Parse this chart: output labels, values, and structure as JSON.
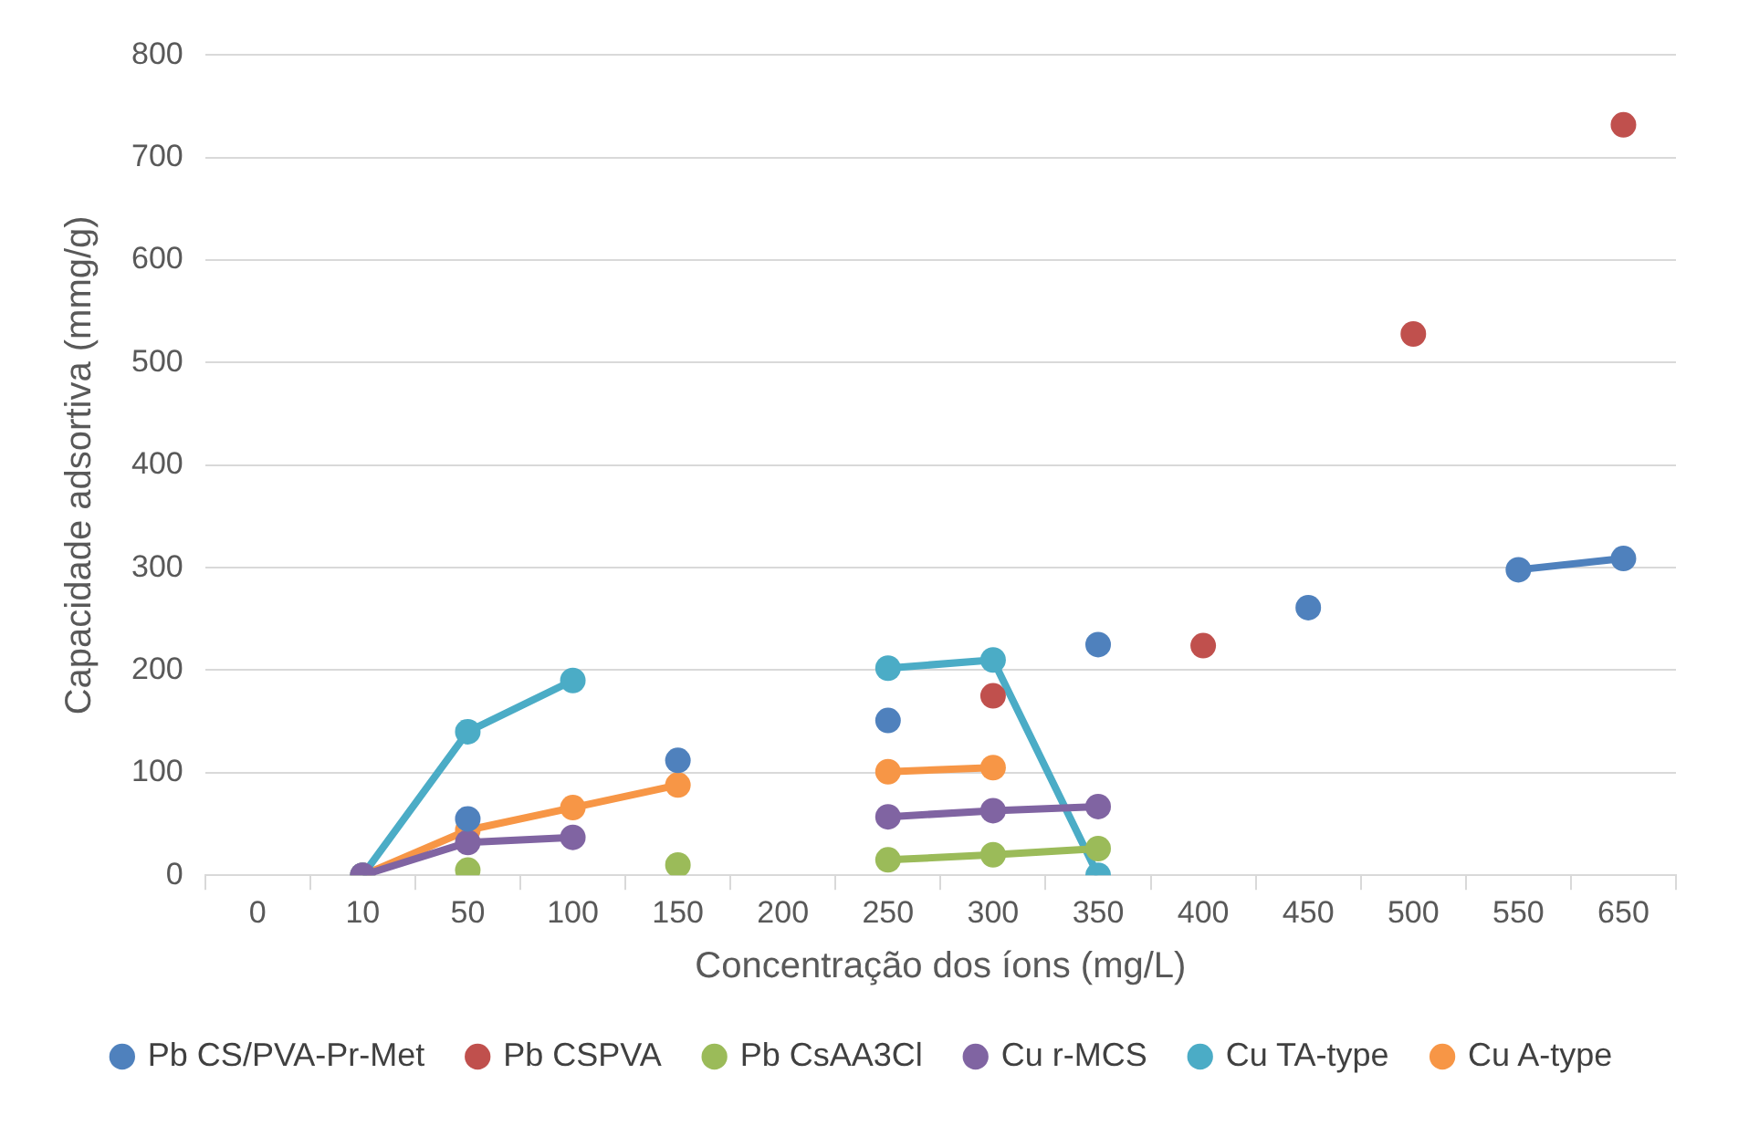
{
  "chart_data": {
    "type": "line",
    "xlabel": "Concentração dos íons (mg/L)",
    "ylabel": "Capacidade adsortiva (mmg/g)",
    "categories": [
      "0",
      "10",
      "50",
      "100",
      "150",
      "200",
      "250",
      "300",
      "350",
      "400",
      "450",
      "500",
      "550",
      "650"
    ],
    "ylim": [
      0,
      800
    ],
    "yticks": [
      0,
      100,
      200,
      300,
      400,
      500,
      600,
      700,
      800
    ],
    "grid": "y",
    "legend": "bottom",
    "marker": "circle",
    "line_style": "solid",
    "series": [
      {
        "name": "Pb CS/PVA-Pr-Met",
        "color": "#4f81bd",
        "values": [
          null,
          null,
          55,
          null,
          112,
          null,
          151,
          null,
          225,
          null,
          261,
          null,
          298,
          309
        ]
      },
      {
        "name": "Pb CSPVA",
        "type": "scatter",
        "color": "#c0504d",
        "values": [
          null,
          null,
          null,
          null,
          null,
          null,
          null,
          175,
          null,
          224,
          null,
          528,
          null,
          732
        ]
      },
      {
        "name": "Pb CsAA3Cl",
        "color": "#9bbb59",
        "values": [
          null,
          null,
          5,
          null,
          10,
          null,
          15,
          20,
          26,
          null,
          null,
          null,
          null,
          null
        ]
      },
      {
        "name": "Cu r-MCS",
        "color": "#8064a2",
        "values": [
          null,
          0,
          32,
          37,
          null,
          null,
          57,
          63,
          67,
          null,
          null,
          null,
          null,
          null
        ]
      },
      {
        "name": "Cu TA-type",
        "color": "#4bacc6",
        "values": [
          null,
          0,
          140,
          190,
          null,
          null,
          202,
          210,
          0,
          null,
          null,
          null,
          null,
          null
        ]
      },
      {
        "name": "Cu A-type",
        "color": "#f79646",
        "values": [
          null,
          0,
          44,
          66,
          88,
          null,
          101,
          105,
          null,
          null,
          null,
          null,
          null,
          null
        ]
      }
    ]
  }
}
